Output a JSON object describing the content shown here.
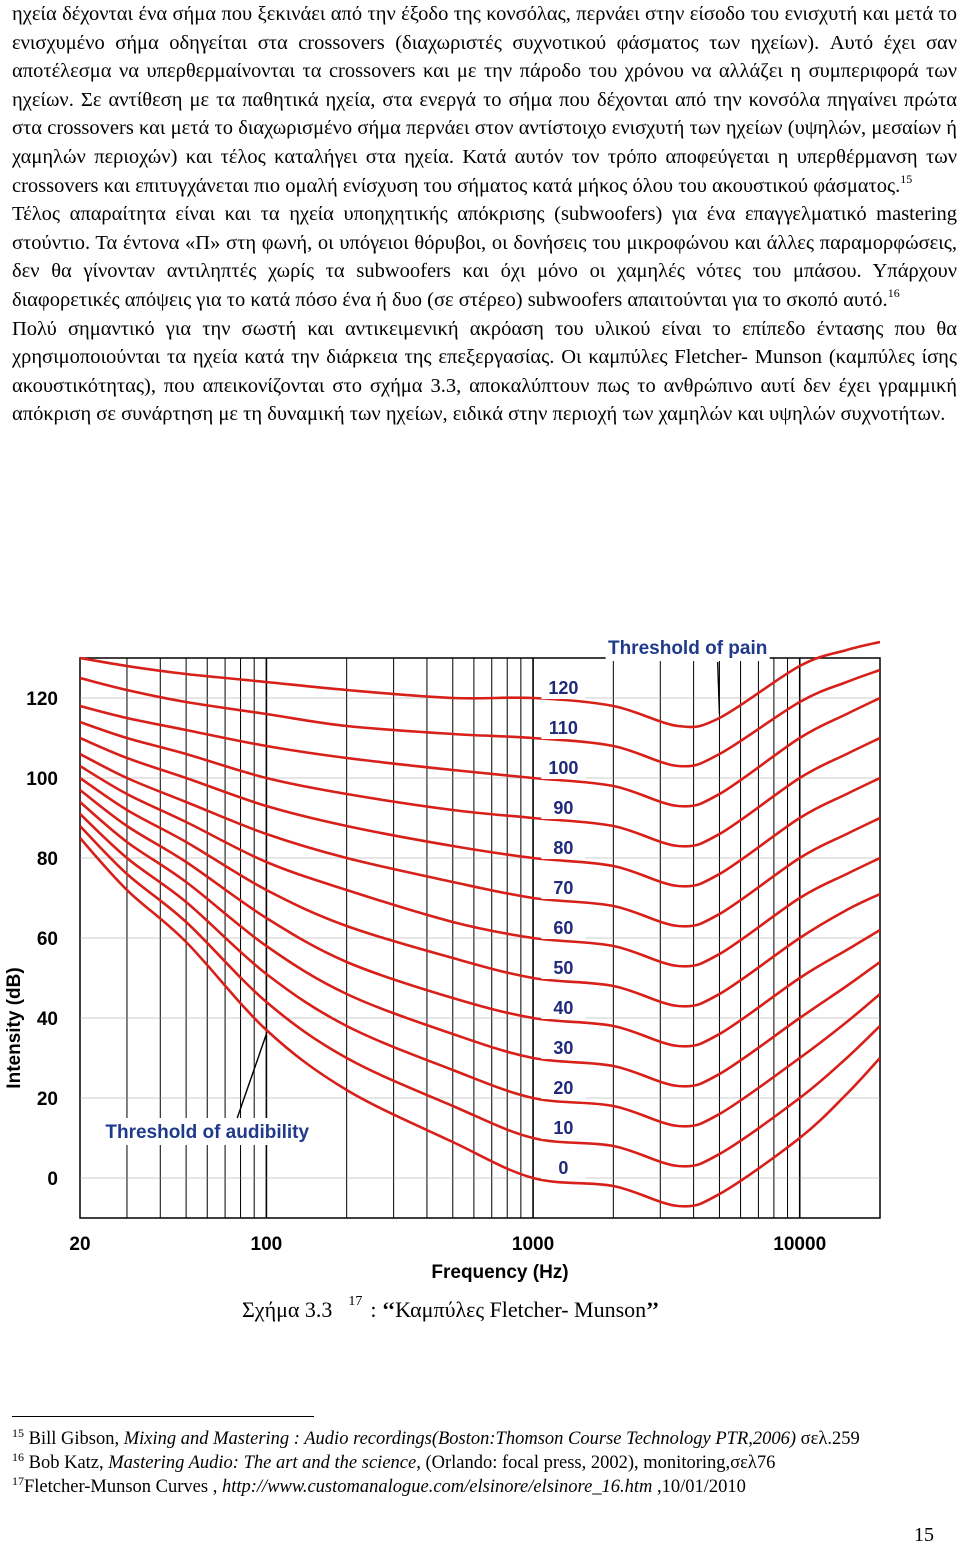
{
  "paragraphs": [
    {
      "text": "ηχεία δέχονται ένα σήμα που ξεκινάει από την έξοδο της κονσόλας, περνάει στην είσοδο του ενισχυτή και μετά το ενισχυμένο σήμα οδηγείται στα crossovers (διαχωριστές συχνοτικού φάσματος των ηχείων). Αυτό έχει σαν αποτέλεσμα να υπερθερμαίνονται τα crossovers και με την πάροδο του χρόνου να αλλάζει η συμπεριφορά των ηχείων. Σε αντίθεση με τα παθητικά ηχεία, στα ενεργά το σήμα που δέχονται από την κονσόλα πηγαίνει πρώτα στα crossovers και μετά  το διαχωρισμένο σήμα περνάει στον αντίστοιχο ενισχυτή των ηχείων (υψηλών, μεσαίων ή χαμηλών περιοχών) και τέλος καταλήγει στα ηχεία. Κατά αυτόν τον τρόπο αποφεύγεται η υπερθέρμανση των  crossovers και επιτυγχάνεται  πιο ομαλή ενίσχυση του σήματος κατά μήκος όλου του ακουστικού φάσματος.",
      "ref": "15"
    },
    {
      "text": "Τέλος απαραίτητα είναι και τα ηχεία υποηχητικής απόκρισης (subwoofers) για ένα επαγγελματικό mastering στούντιο. Τα έντονα «Π» στη φωνή, οι υπόγειοι θόρυβοι, οι δονήσεις του μικροφώνου και άλλες παραμορφώσεις, δεν θα γίνονταν αντιληπτές χωρίς τα subwoofers και όχι μόνο οι χαμηλές νότες του μπάσου. Υπάρχουν διαφορετικές απόψεις για το κατά πόσο ένα ή δυο (σε στέρεο) subwoofers απαιτούνται για το σκοπό αυτό.",
      "ref": "16"
    },
    {
      "text": "Πολύ σημαντικό για την σωστή και αντικειμενική ακρόαση του υλικού είναι το επίπεδο έντασης που θα χρησιμοποιούνται τα ηχεία κατά την διάρκεια της επεξεργασίας. Οι καμπύλες Fletcher- Munson (καμπύλες ίσης ακουστικότητας), που απεικονίζονται στο σχήμα 3.3,  αποκαλύπτουν πως το ανθρώπινο αυτί δεν έχει γραμμική απόκριση σε συνάρτηση με τη δυναμική των ηχείων, ειδικά στην περιοχή των χαμηλών και υψηλών συχνοτήτων.",
      "ref": ""
    }
  ],
  "chart_data": {
    "type": "line",
    "title": "",
    "xlabel": "Frequency (Hz)",
    "ylabel": "Intensity (dB)",
    "x_scale": "log",
    "xlim": [
      20,
      20000
    ],
    "ylim": [
      -10,
      130
    ],
    "x_ticks": [
      "20",
      "100",
      "1000",
      "10000"
    ],
    "x_tick_values": [
      20,
      100,
      1000,
      10000
    ],
    "y_ticks": [
      "0",
      "20",
      "40",
      "60",
      "80",
      "100",
      "120"
    ],
    "y_tick_values": [
      0,
      20,
      40,
      60,
      80,
      100,
      120
    ],
    "x": [
      20,
      30,
      50,
      100,
      200,
      500,
      1000,
      2000,
      3500,
      5000,
      10000,
      15000,
      20000
    ],
    "series": [
      {
        "name": "120",
        "values": [
          130,
          128,
          126,
          124,
          122,
          120,
          120,
          118,
          113,
          115,
          128,
          132,
          134
        ]
      },
      {
        "name": "110",
        "values": [
          125,
          122,
          119,
          116,
          113,
          111,
          110,
          108,
          103,
          106,
          119,
          124,
          127
        ]
      },
      {
        "name": "100",
        "values": [
          118,
          115,
          112,
          108,
          105,
          102,
          100,
          98,
          93,
          96,
          110,
          116,
          120
        ]
      },
      {
        "name": "90",
        "values": [
          114,
          110,
          106,
          100,
          96,
          92,
          90,
          88,
          83,
          86,
          100,
          106,
          110
        ]
      },
      {
        "name": "80",
        "values": [
          110,
          105,
          100,
          93,
          88,
          83,
          80,
          78,
          73,
          76,
          90,
          96,
          100
        ]
      },
      {
        "name": "70",
        "values": [
          106,
          100,
          94,
          86,
          80,
          74,
          70,
          68,
          63,
          66,
          80,
          86,
          90
        ]
      },
      {
        "name": "60",
        "values": [
          103,
          96,
          89,
          79,
          72,
          64,
          60,
          58,
          53,
          56,
          70,
          76,
          80
        ]
      },
      {
        "name": "50",
        "values": [
          100,
          92,
          84,
          72,
          63,
          55,
          50,
          48,
          43,
          46,
          60,
          67,
          71
        ]
      },
      {
        "name": "40",
        "values": [
          97,
          88,
          79,
          65,
          54,
          45,
          40,
          38,
          33,
          36,
          50,
          57,
          62
        ]
      },
      {
        "name": "30",
        "values": [
          94,
          84,
          74,
          58,
          46,
          36,
          30,
          28,
          23,
          26,
          40,
          48,
          54
        ]
      },
      {
        "name": "20",
        "values": [
          91,
          80,
          69,
          51,
          38,
          27,
          20,
          18,
          13,
          16,
          30,
          39,
          46
        ]
      },
      {
        "name": "10",
        "values": [
          88,
          76,
          64,
          44,
          30,
          18,
          10,
          8,
          3,
          6,
          20,
          30,
          38
        ]
      },
      {
        "name": "0",
        "values": [
          85,
          72,
          59,
          37,
          22,
          9,
          0,
          -2,
          -7,
          -4,
          10,
          21,
          30
        ]
      }
    ],
    "annotations": [
      {
        "text": "Threshold of pain",
        "target": "120"
      },
      {
        "text": "Threshold of audibility",
        "target": "0"
      }
    ],
    "grid": true,
    "colors": {
      "curve": "#d8201a",
      "grid": "#000000",
      "annotation": "#1f3a8a"
    }
  },
  "caption": {
    "label": "Σχήμα  3.3",
    "ref": "17",
    "separator": ":",
    "quote_open": "‘‘",
    "title": "Καμπύλες Fletcher- Munson",
    "quote_close": "’’"
  },
  "footnotes": [
    {
      "num": "15",
      "pre": " Bill Gibson, ",
      "italic": "Mixing and Mastering : Audio recordings(Boston:Thomson Course Technology PTR,2006)",
      "post": " σελ.259"
    },
    {
      "num": "16",
      "pre": " Bob Katz, ",
      "italic": "Mastering Audio: The art and the science,",
      "post": " (Orlando: focal press, 2002), monitoring,σελ76"
    },
    {
      "num": "17",
      "pre": "Fletcher-Munson Curves , ",
      "italic": "http://www.customanalogue.com/elsinore/elsinore_16.htm",
      "post": " ,10/01/2010"
    }
  ],
  "page_number": "15"
}
